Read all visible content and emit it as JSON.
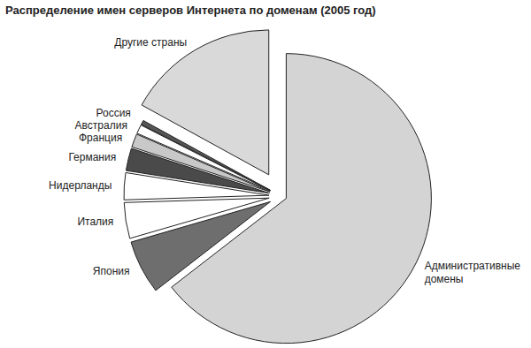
{
  "chart_data": {
    "type": "pie",
    "title": "Распределение имен серверов Интернета по доменам (2005 год)",
    "categories": [
      "Административные домены",
      "Япония",
      "Италия",
      "Нидерланды",
      "Германия",
      "Франция",
      "Австралия",
      "Россия",
      "Другие страны"
    ],
    "values": [
      64.5,
      6,
      4,
      3,
      2.5,
      1.5,
      1,
      0.5,
      17
    ],
    "colors": [
      "#d4d4d4",
      "#6e6e6e",
      "#ffffff",
      "#ffffff",
      "#4a4a4a",
      "#c8c8c8",
      "#ffffff",
      "#555555",
      "#d9d9d9"
    ]
  }
}
